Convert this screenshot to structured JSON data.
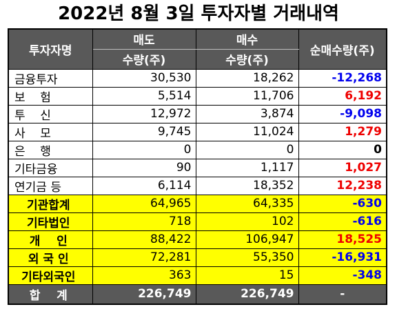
{
  "title": "2022년 8월 3일 투자자별 거래내역",
  "header": {
    "investor": "투자자명",
    "sell": "매도",
    "buy": "매수",
    "sell_sub": "수량(주)",
    "buy_sub": "수량(주)",
    "net": "순매수량(주)"
  },
  "rows": [
    {
      "name": "금융투자",
      "sell": "30,530",
      "buy": "18,262",
      "net": "-12,268",
      "sign": "neg",
      "highlight": false
    },
    {
      "name": "보    험",
      "sell": "5,514",
      "buy": "11,706",
      "net": "6,192",
      "sign": "pos",
      "highlight": false
    },
    {
      "name": "투    신",
      "sell": "12,972",
      "buy": "3,874",
      "net": "-9,098",
      "sign": "neg",
      "highlight": false
    },
    {
      "name": "사    모",
      "sell": "9,745",
      "buy": "11,024",
      "net": "1,279",
      "sign": "pos",
      "highlight": false
    },
    {
      "name": "은    행",
      "sell": "0",
      "buy": "0",
      "net": "0",
      "sign": "zero",
      "highlight": false
    },
    {
      "name": "기타금융",
      "sell": "90",
      "buy": "1,117",
      "net": "1,027",
      "sign": "pos",
      "highlight": false
    },
    {
      "name": "연기금 등",
      "sell": "6,114",
      "buy": "18,352",
      "net": "12,238",
      "sign": "pos",
      "highlight": false
    },
    {
      "name": "기관합계",
      "sell": "64,965",
      "buy": "64,335",
      "net": "-630",
      "sign": "neg",
      "highlight": true
    },
    {
      "name": "기타법인",
      "sell": "718",
      "buy": "102",
      "net": "-616",
      "sign": "neg",
      "highlight": true
    },
    {
      "name": "개    인",
      "sell": "88,422",
      "buy": "106,947",
      "net": "18,525",
      "sign": "pos",
      "highlight": true
    },
    {
      "name": "외 국 인",
      "sell": "72,281",
      "buy": "55,350",
      "net": "-16,931",
      "sign": "neg",
      "highlight": true
    },
    {
      "name": "기타외국인",
      "sell": "363",
      "buy": "15",
      "net": "-348",
      "sign": "neg",
      "highlight": true
    }
  ],
  "total": {
    "name": "합    계",
    "sell": "226,749",
    "buy": "226,749",
    "net": "-"
  },
  "colors": {
    "header_bg": "#595959",
    "highlight_bg": "#ffff00",
    "negative": "#0000ee",
    "positive": "#ee0000"
  }
}
